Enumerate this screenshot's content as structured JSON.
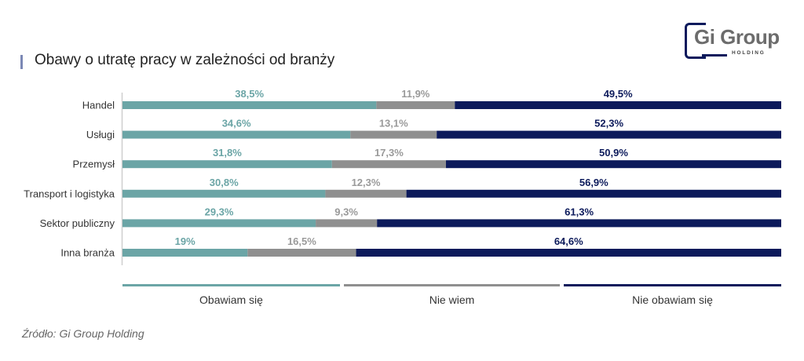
{
  "header": {
    "title": "Obawy o utratę pracy w zależności od branży",
    "logo_text": "Gi Group",
    "logo_subtext": "HOLDING"
  },
  "colors": {
    "obawiam": "#6ba5a6",
    "nie_wiem": "#8f8f8f",
    "nie_obawiam": "#0c1a5b",
    "obawiam_label": "#6ba5a6",
    "nie_wiem_label": "#9a9a9a",
    "nie_obawiam_label": "#0c1a5b",
    "accent": "#7b88b5"
  },
  "chart_data": {
    "type": "bar",
    "orientation": "horizontal",
    "stacked": true,
    "title": "Obawy o utratę pracy w zależności od branży",
    "categories": [
      "Handel",
      "Usługi",
      "Przemysł",
      "Transport i logistyka",
      "Sektor publiczny",
      "Inna branża"
    ],
    "series": [
      {
        "name": "Obawiam się",
        "values": [
          38.5,
          34.6,
          31.8,
          30.8,
          29.3,
          19
        ],
        "labels": [
          "38,5%",
          "34,6%",
          "31,8%",
          "30,8%",
          "29,3%",
          "19%"
        ]
      },
      {
        "name": "Nie wiem",
        "values": [
          11.9,
          13.1,
          17.3,
          12.3,
          9.3,
          16.5
        ],
        "labels": [
          "11,9%",
          "13,1%",
          "17,3%",
          "12,3%",
          "9,3%",
          "16,5%"
        ]
      },
      {
        "name": "Nie obawiam się",
        "values": [
          49.5,
          52.3,
          50.9,
          56.9,
          61.3,
          64.6
        ],
        "labels": [
          "49,5%",
          "52,3%",
          "50,9%",
          "56,9%",
          "61,3%",
          "64,6%"
        ]
      }
    ],
    "xlim": [
      0,
      100
    ],
    "legend": {
      "position": "bottom",
      "entries": [
        "Obawiam się",
        "Nie wiem",
        "Nie obawiam się"
      ]
    },
    "grid": false
  },
  "footer": {
    "source": "Źródło: Gi Group Holding"
  }
}
